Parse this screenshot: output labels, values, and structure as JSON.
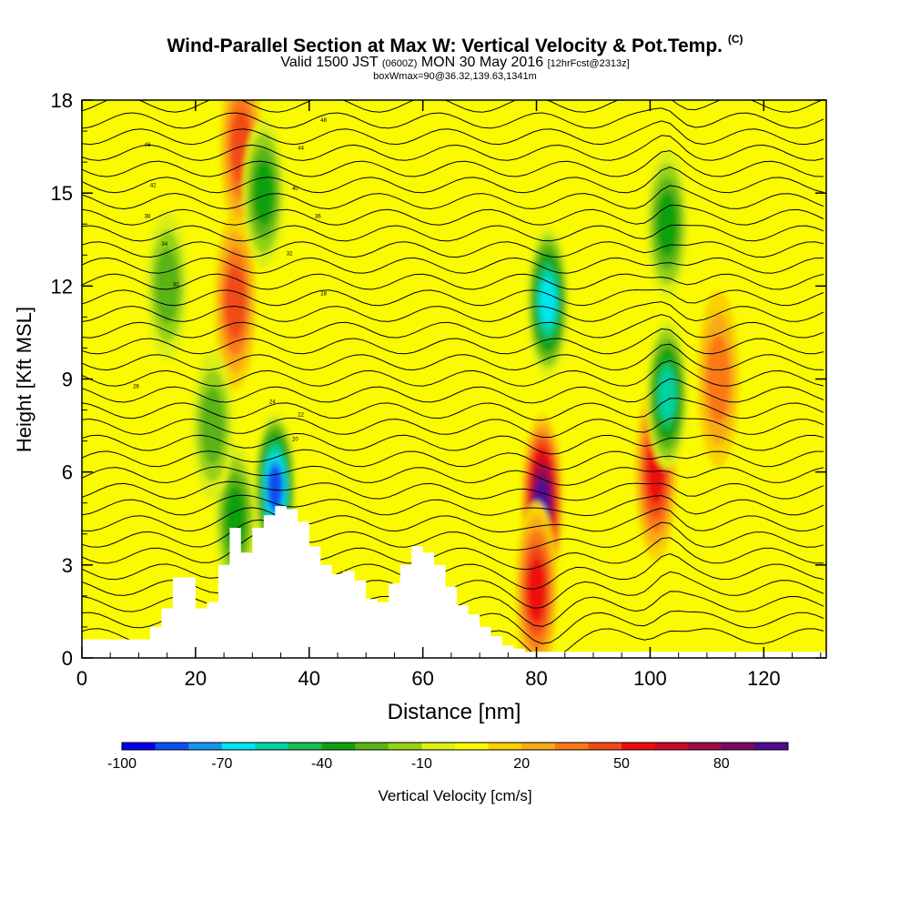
{
  "title": {
    "main": "Wind-Parallel Section at Max W: Vertical Velocity & Pot.Temp.",
    "mark": "(C)",
    "line2a": "Valid 1500 JST",
    "line2b": "(0600Z)",
    "line2c": "MON 30 May 2016",
    "line2d": "[12hrFcst@2313z]",
    "line3": "boxWmax=90@36.32,139.63,1341m"
  },
  "chart_data": {
    "type": "heatmap",
    "xlabel": "Distance [nm]",
    "ylabel": "Height [Kft MSL]",
    "xlim": [
      0,
      131
    ],
    "ylim": [
      0,
      18
    ],
    "xticks": [
      "0",
      "20",
      "40",
      "60",
      "80",
      "100",
      "120"
    ],
    "yticks": [
      "0",
      "3",
      "6",
      "9",
      "12",
      "15",
      "18"
    ],
    "colorbar": {
      "label": "Vertical Velocity [cm/s]",
      "ticks": [
        "-100",
        "-70",
        "-40",
        "-10",
        "20",
        "50",
        "80"
      ],
      "levels": [
        -100,
        -90,
        -80,
        -70,
        -60,
        -50,
        -40,
        -30,
        -20,
        -10,
        0,
        10,
        20,
        30,
        40,
        50,
        60,
        70,
        80,
        90
      ],
      "colors": [
        "#0000f0",
        "#0a50f0",
        "#1496f0",
        "#00e6f0",
        "#00d2a0",
        "#14be50",
        "#10a010",
        "#5ab414",
        "#96d214",
        "#dcf014",
        "#fafa00",
        "#fad200",
        "#faaa14",
        "#fa7814",
        "#f04b14",
        "#f00a0a",
        "#c80a28",
        "#a00a46",
        "#780a64",
        "#500a96"
      ]
    },
    "contour_series": "Potential temperature (isentropes)",
    "theta_labels_on_plot": [
      "48",
      "46",
      "44",
      "42",
      "40",
      "38",
      "36",
      "34",
      "32",
      "30",
      "28",
      "26",
      "24",
      "22",
      "20"
    ],
    "vertical_velocity_features": [
      {
        "x": 81,
        "height": 5.0,
        "w": 90,
        "kind": "updraft max"
      },
      {
        "x": 80,
        "height": 2.2,
        "w": 50,
        "kind": "updraft"
      },
      {
        "x": 101,
        "height": 6.0,
        "w": 50,
        "kind": "updraft"
      },
      {
        "x": 112,
        "height": 9.0,
        "w": 30,
        "kind": "updraft"
      },
      {
        "x": 27,
        "height": 11.5,
        "w": 40,
        "kind": "updraft"
      },
      {
        "x": 28,
        "height": 16.5,
        "w": 40,
        "kind": "updraft"
      },
      {
        "x": 34,
        "height": 5.5,
        "w": -95,
        "kind": "downdraft"
      },
      {
        "x": 27,
        "height": 4.5,
        "w": -40,
        "kind": "downdraft"
      },
      {
        "x": 82,
        "height": 11.5,
        "w": -70,
        "kind": "downdraft"
      },
      {
        "x": 103,
        "height": 8.5,
        "w": -60,
        "kind": "downdraft"
      },
      {
        "x": 103,
        "height": 14.0,
        "w": -40,
        "kind": "downdraft"
      },
      {
        "x": 32,
        "height": 15.0,
        "w": -40,
        "kind": "downdraft"
      },
      {
        "x": 15,
        "height": 12.0,
        "w": -30,
        "kind": "downdraft"
      },
      {
        "x": 23,
        "height": 7.5,
        "w": -30,
        "kind": "downdraft"
      }
    ],
    "terrain_profile": {
      "x": [
        0,
        6,
        12,
        14,
        16,
        18,
        20,
        22,
        24,
        26,
        28,
        30,
        32,
        34,
        36,
        38,
        40,
        42,
        44,
        46,
        48,
        50,
        52,
        54,
        56,
        58,
        60,
        62,
        64,
        66,
        68,
        70,
        72,
        74,
        76,
        78,
        80,
        85,
        90,
        100,
        110,
        120,
        131
      ],
      "height": [
        0.6,
        0.6,
        1.0,
        1.6,
        2.6,
        2.6,
        1.6,
        1.8,
        3.0,
        4.2,
        3.4,
        4.2,
        4.6,
        4.9,
        4.8,
        4.4,
        3.6,
        3.0,
        2.7,
        2.8,
        2.5,
        1.9,
        1.8,
        2.4,
        3.0,
        3.6,
        3.4,
        3.0,
        2.3,
        1.7,
        1.4,
        1.0,
        0.7,
        0.4,
        0.3,
        0.2,
        0.2,
        0.2,
        0.2,
        0.2,
        0.2,
        0.2,
        0.2
      ]
    }
  }
}
